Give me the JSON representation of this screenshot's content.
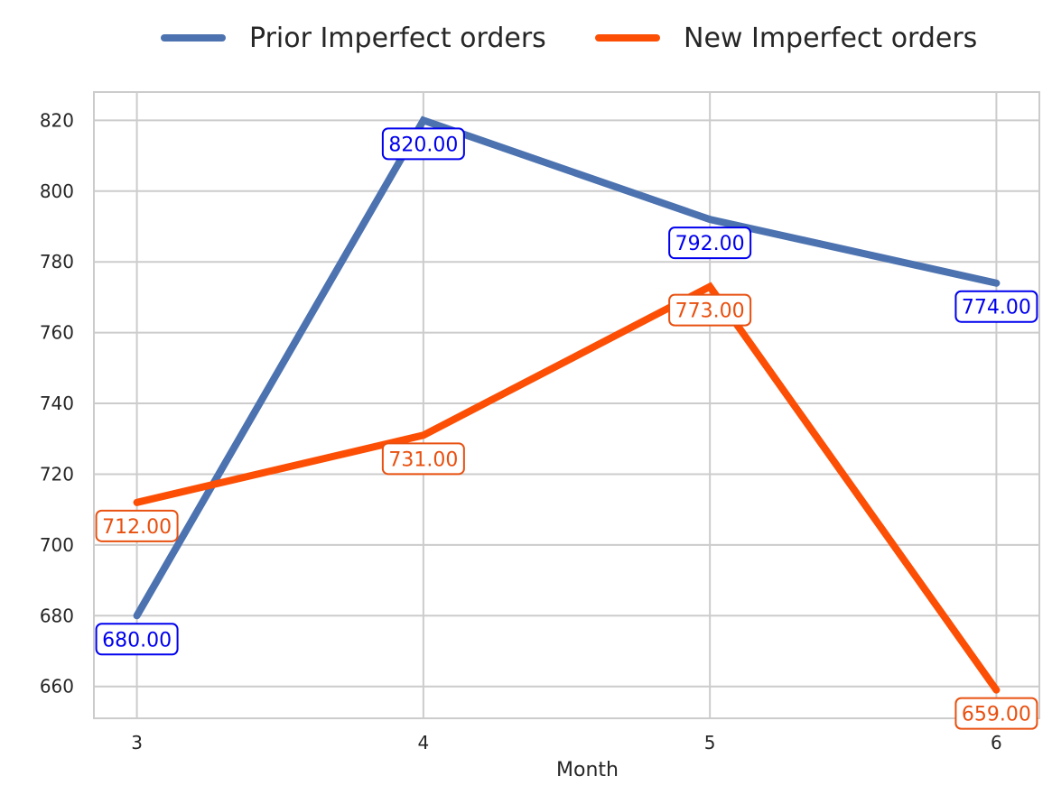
{
  "chart_data": {
    "type": "line",
    "title": "",
    "xlabel": "Month",
    "ylabel": "",
    "x": [
      3,
      4,
      5,
      6
    ],
    "xlim": [
      2.85,
      6.15
    ],
    "ylim": [
      651,
      828
    ],
    "yticks": [
      660,
      680,
      700,
      720,
      740,
      760,
      780,
      800,
      820
    ],
    "grid": true,
    "legend_position": "top-center",
    "series": [
      {
        "name": "Prior Imperfect orders",
        "values": [
          680,
          820,
          792,
          774
        ],
        "color": "#4c72b0",
        "label_color": "#0000ee",
        "labels": [
          "680.00",
          "820.00",
          "792.00",
          "774.00"
        ]
      },
      {
        "name": "New Imperfect orders",
        "values": [
          712,
          731,
          773,
          659
        ],
        "color": "#fc4f05",
        "label_color": "#e85010",
        "labels": [
          "712.00",
          "731.00",
          "773.00",
          "659.00"
        ]
      }
    ]
  }
}
